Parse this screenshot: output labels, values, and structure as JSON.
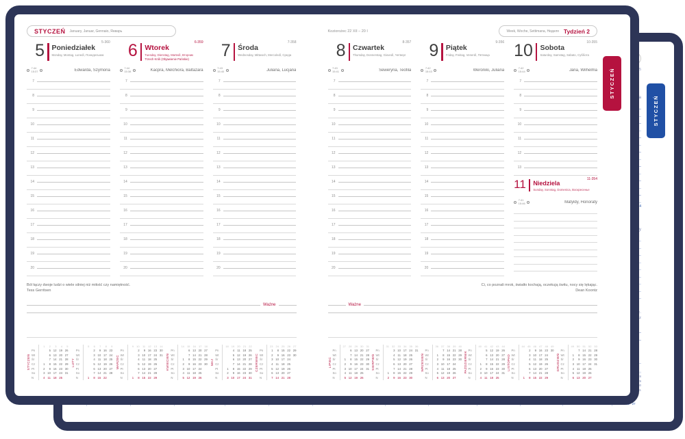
{
  "product": {
    "frame_color": "#2d3557",
    "front_accent": "#b5123f",
    "back_accent": "#2050a5",
    "front_edition": "burgundy",
    "back_edition": "blue"
  },
  "spread": {
    "tab_label": "STYCZEŃ",
    "month_header": {
      "month": "STYCZEŃ",
      "languages": "January, Januar, Gennaio, Январь"
    },
    "zodiac": "Koziorożec 22 XII – 20 I",
    "week_header": {
      "languages": "Week, Woche, Settimana, Неделя",
      "week_label": "Tydzień 2"
    },
    "wazne_label": "Ważne",
    "days": [
      {
        "number": "5",
        "name": "Poniedziałek",
        "languages": "Monday, Montag, Lunedì, Понедельник",
        "code": "5-360",
        "sunrise": "7:44",
        "sunset": "15:37",
        "namedays": "Edwarda, Szymona"
      },
      {
        "number": "6",
        "name": "Wtorek",
        "languages": "Tuesday, Dienstag, Martedì, Вторник",
        "holiday": "Trzech Króli (Objawienie Pańskie)",
        "code": "6-359",
        "sunrise": "7:44",
        "sunset": "15:38",
        "namedays": "Kacpra, Melchiora, Baltazara"
      },
      {
        "number": "7",
        "name": "Środa",
        "languages": "Wednesday, Mittwoch, Mercoledì, Среда",
        "code": "7-358",
        "sunrise": "7:43",
        "sunset": "15:40",
        "namedays": "Juliana, Lucjana"
      },
      {
        "number": "8",
        "name": "Czwartek",
        "languages": "Thursday, Donnerstag, Giovedì, Четверг",
        "code": "8-357",
        "sunrise": "7:43",
        "sunset": "15:41",
        "namedays": "Seweryna, Teofila"
      },
      {
        "number": "9",
        "name": "Piątek",
        "languages": "Friday, Freitag, Venerdì, Пятница",
        "code": "9-356",
        "sunrise": "7:42",
        "sunset": "15:43",
        "namedays": "Weroniki, Juliana"
      },
      {
        "number": "10",
        "name": "Sobota",
        "languages": "Saturday, Samstag, Sabato, Суббота",
        "code": "10-355",
        "sunrise": "7:42",
        "sunset": "15:44",
        "namedays": "Jana, Wilhelma",
        "embedded": {
          "number": "11",
          "name": "Niedziela",
          "languages": "Sunday, Sonntag, Domenica, Воскресенье",
          "code": "11-354",
          "sunrise": "7:41",
          "sunset": "15:46",
          "namedays": "Matyldy, Honoraty"
        }
      }
    ],
    "quotes": {
      "left": {
        "text": "Ból łączy dwoje ludzi o wiele silniej niż miłość czy namiętność.",
        "author": "Tess Gerritsen"
      },
      "right": {
        "text": "Ci, co poznali mrok, światło kochają, oczekują świtu, nocy się lękając.",
        "author": "Dean Koontz"
      }
    },
    "weekday_abbrs": [
      "Pn",
      "Wt",
      "Śr",
      "Cz",
      "Pt",
      "So",
      "N"
    ],
    "mini_calendars": {
      "left": [
        {
          "name": "STYCZEŃ",
          "weeks": [
            1,
            2,
            3,
            4,
            5
          ],
          "rows": [
            [
              "",
              "5",
              "12",
              "19",
              "26"
            ],
            [
              "",
              "6",
              "13",
              "20",
              "27"
            ],
            [
              "",
              "7",
              "14",
              "21",
              "28"
            ],
            [
              "1",
              "8",
              "15",
              "22",
              "29"
            ],
            [
              "2",
              "9",
              "16",
              "23",
              "30"
            ],
            [
              "3",
              "10",
              "17",
              "24",
              "31"
            ],
            [
              "4",
              "11",
              "18",
              "25",
              ""
            ]
          ]
        },
        {
          "name": "LUTY",
          "weeks": [
            5,
            6,
            7,
            8,
            9
          ],
          "rows": [
            [
              "",
              "2",
              "9",
              "16",
              "23"
            ],
            [
              "",
              "3",
              "10",
              "17",
              "24"
            ],
            [
              "",
              "4",
              "11",
              "18",
              "25"
            ],
            [
              "",
              "5",
              "12",
              "19",
              "26"
            ],
            [
              "",
              "6",
              "13",
              "20",
              "27"
            ],
            [
              "",
              "7",
              "14",
              "21",
              "28"
            ],
            [
              "1",
              "8",
              "15",
              "22",
              ""
            ]
          ]
        },
        {
          "name": "MARZEC",
          "weeks": [
            9,
            10,
            11,
            12,
            13,
            14
          ],
          "rows": [
            [
              "",
              "2",
              "9",
              "16",
              "23",
              "30"
            ],
            [
              "",
              "3",
              "10",
              "17",
              "24",
              "31"
            ],
            [
              "",
              "4",
              "11",
              "18",
              "25",
              ""
            ],
            [
              "",
              "5",
              "12",
              "19",
              "26",
              ""
            ],
            [
              "",
              "6",
              "13",
              "20",
              "27",
              ""
            ],
            [
              "",
              "7",
              "14",
              "21",
              "28",
              ""
            ],
            [
              "1",
              "8",
              "15",
              "22",
              "29",
              ""
            ]
          ]
        },
        {
          "name": "KWIECIEŃ",
          "weeks": [
            14,
            15,
            16,
            17,
            18
          ],
          "rows": [
            [
              "",
              "6",
              "13",
              "20",
              "27"
            ],
            [
              "",
              "7",
              "14",
              "21",
              "28"
            ],
            [
              "1",
              "8",
              "15",
              "22",
              "29"
            ],
            [
              "2",
              "9",
              "16",
              "23",
              "30"
            ],
            [
              "3",
              "10",
              "17",
              "24",
              ""
            ],
            [
              "4",
              "11",
              "18",
              "25",
              ""
            ],
            [
              "5",
              "12",
              "19",
              "26",
              ""
            ]
          ]
        },
        {
          "name": "MAJ",
          "weeks": [
            18,
            19,
            20,
            21,
            22
          ],
          "rows": [
            [
              "",
              "4",
              "11",
              "18",
              "25"
            ],
            [
              "",
              "5",
              "12",
              "19",
              "26"
            ],
            [
              "",
              "6",
              "13",
              "20",
              "27"
            ],
            [
              "",
              "7",
              "14",
              "21",
              "28"
            ],
            [
              "1",
              "8",
              "15",
              "22",
              "29"
            ],
            [
              "2",
              "9",
              "16",
              "23",
              "30"
            ],
            [
              "3",
              "10",
              "17",
              "24",
              "31"
            ]
          ]
        },
        {
          "name": "CZERWIEC",
          "weeks": [
            23,
            24,
            25,
            26,
            27
          ],
          "rows": [
            [
              "1",
              "8",
              "15",
              "22",
              "29"
            ],
            [
              "2",
              "9",
              "16",
              "23",
              "30"
            ],
            [
              "3",
              "10",
              "17",
              "24",
              ""
            ],
            [
              "4",
              "11",
              "18",
              "25",
              ""
            ],
            [
              "5",
              "12",
              "19",
              "26",
              ""
            ],
            [
              "6",
              "13",
              "20",
              "27",
              ""
            ],
            [
              "7",
              "14",
              "21",
              "28",
              ""
            ]
          ]
        }
      ],
      "right": [
        {
          "name": "LIPIEC",
          "weeks": [
            27,
            28,
            29,
            30,
            31
          ],
          "rows": [
            [
              "",
              "6",
              "13",
              "20",
              "27"
            ],
            [
              "",
              "7",
              "14",
              "21",
              "28"
            ],
            [
              "1",
              "8",
              "15",
              "22",
              "29"
            ],
            [
              "2",
              "9",
              "16",
              "23",
              "30"
            ],
            [
              "3",
              "10",
              "17",
              "24",
              "31"
            ],
            [
              "4",
              "11",
              "18",
              "25",
              ""
            ],
            [
              "5",
              "12",
              "19",
              "26",
              ""
            ]
          ]
        },
        {
          "name": "SIERPIEŃ",
          "weeks": [
            31,
            32,
            33,
            34,
            35,
            36
          ],
          "rows": [
            [
              "",
              "3",
              "10",
              "17",
              "24",
              "31"
            ],
            [
              "",
              "4",
              "11",
              "18",
              "25",
              ""
            ],
            [
              "",
              "5",
              "12",
              "19",
              "26",
              ""
            ],
            [
              "",
              "6",
              "13",
              "20",
              "27",
              ""
            ],
            [
              "",
              "7",
              "14",
              "21",
              "28",
              ""
            ],
            [
              "1",
              "8",
              "15",
              "22",
              "29",
              ""
            ],
            [
              "2",
              "9",
              "16",
              "23",
              "30",
              ""
            ]
          ]
        },
        {
          "name": "WRZESIEŃ",
          "weeks": [
            36,
            37,
            38,
            39,
            40
          ],
          "rows": [
            [
              "",
              "7",
              "14",
              "21",
              "28"
            ],
            [
              "1",
              "8",
              "15",
              "22",
              "29"
            ],
            [
              "2",
              "9",
              "16",
              "23",
              "30"
            ],
            [
              "3",
              "10",
              "17",
              "24",
              ""
            ],
            [
              "4",
              "11",
              "18",
              "25",
              ""
            ],
            [
              "5",
              "12",
              "19",
              "26",
              ""
            ],
            [
              "6",
              "13",
              "20",
              "27",
              ""
            ]
          ]
        },
        {
          "name": "PAŹDZIERNIK",
          "weeks": [
            40,
            41,
            42,
            43,
            44
          ],
          "rows": [
            [
              "",
              "5",
              "12",
              "19",
              "26"
            ],
            [
              "",
              "6",
              "13",
              "20",
              "27"
            ],
            [
              "",
              "7",
              "14",
              "21",
              "28"
            ],
            [
              "1",
              "8",
              "15",
              "22",
              "29"
            ],
            [
              "2",
              "9",
              "16",
              "23",
              "30"
            ],
            [
              "3",
              "10",
              "17",
              "24",
              "31"
            ],
            [
              "4",
              "11",
              "18",
              "25",
              ""
            ]
          ]
        },
        {
          "name": "LISTOPAD",
          "weeks": [
            44,
            45,
            46,
            47,
            48,
            49
          ],
          "rows": [
            [
              "",
              "2",
              "9",
              "16",
              "23",
              "30"
            ],
            [
              "",
              "3",
              "10",
              "17",
              "24",
              ""
            ],
            [
              "",
              "4",
              "11",
              "18",
              "25",
              ""
            ],
            [
              "",
              "5",
              "12",
              "19",
              "26",
              ""
            ],
            [
              "",
              "6",
              "13",
              "20",
              "27",
              ""
            ],
            [
              "",
              "7",
              "14",
              "21",
              "28",
              ""
            ],
            [
              "1",
              "8",
              "15",
              "22",
              "29",
              ""
            ]
          ]
        },
        {
          "name": "GRUDZIEŃ",
          "weeks": [
            49,
            50,
            51,
            52,
            53
          ],
          "rows": [
            [
              "",
              "7",
              "14",
              "21",
              "28"
            ],
            [
              "1",
              "8",
              "15",
              "22",
              "29"
            ],
            [
              "2",
              "9",
              "16",
              "23",
              "30"
            ],
            [
              "3",
              "10",
              "17",
              "24",
              "31"
            ],
            [
              "4",
              "11",
              "18",
              "25",
              ""
            ],
            [
              "5",
              "12",
              "19",
              "26",
              ""
            ],
            [
              "6",
              "13",
              "20",
              "27",
              ""
            ]
          ]
        }
      ]
    }
  }
}
